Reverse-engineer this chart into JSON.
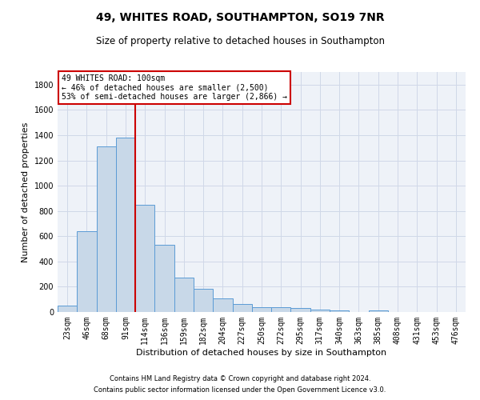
{
  "title1": "49, WHITES ROAD, SOUTHAMPTON, SO19 7NR",
  "title2": "Size of property relative to detached houses in Southampton",
  "xlabel": "Distribution of detached houses by size in Southampton",
  "ylabel": "Number of detached properties",
  "footer1": "Contains HM Land Registry data © Crown copyright and database right 2024.",
  "footer2": "Contains public sector information licensed under the Open Government Licence v3.0.",
  "annotation_line1": "49 WHITES ROAD: 100sqm",
  "annotation_line2": "← 46% of detached houses are smaller (2,500)",
  "annotation_line3": "53% of semi-detached houses are larger (2,866) →",
  "bar_color": "#c8d8e8",
  "bar_edge_color": "#5b9bd5",
  "grid_color": "#d0d8e8",
  "bg_color": "#eef2f8",
  "red_line_color": "#cc0000",
  "categories": [
    "23sqm",
    "46sqm",
    "68sqm",
    "91sqm",
    "114sqm",
    "136sqm",
    "159sqm",
    "182sqm",
    "204sqm",
    "227sqm",
    "250sqm",
    "272sqm",
    "295sqm",
    "317sqm",
    "340sqm",
    "363sqm",
    "385sqm",
    "408sqm",
    "431sqm",
    "453sqm",
    "476sqm"
  ],
  "values": [
    50,
    640,
    1310,
    1380,
    850,
    530,
    275,
    185,
    105,
    65,
    38,
    35,
    30,
    20,
    10,
    0,
    15,
    0,
    0,
    0,
    0
  ],
  "red_line_x": 3.5,
  "ylim": [
    0,
    1900
  ],
  "yticks": [
    0,
    200,
    400,
    600,
    800,
    1000,
    1200,
    1400,
    1600,
    1800
  ],
  "title1_fontsize": 10,
  "title2_fontsize": 8.5,
  "xlabel_fontsize": 8,
  "ylabel_fontsize": 8,
  "tick_fontsize": 7,
  "annotation_fontsize": 7,
  "footer_fontsize": 6
}
